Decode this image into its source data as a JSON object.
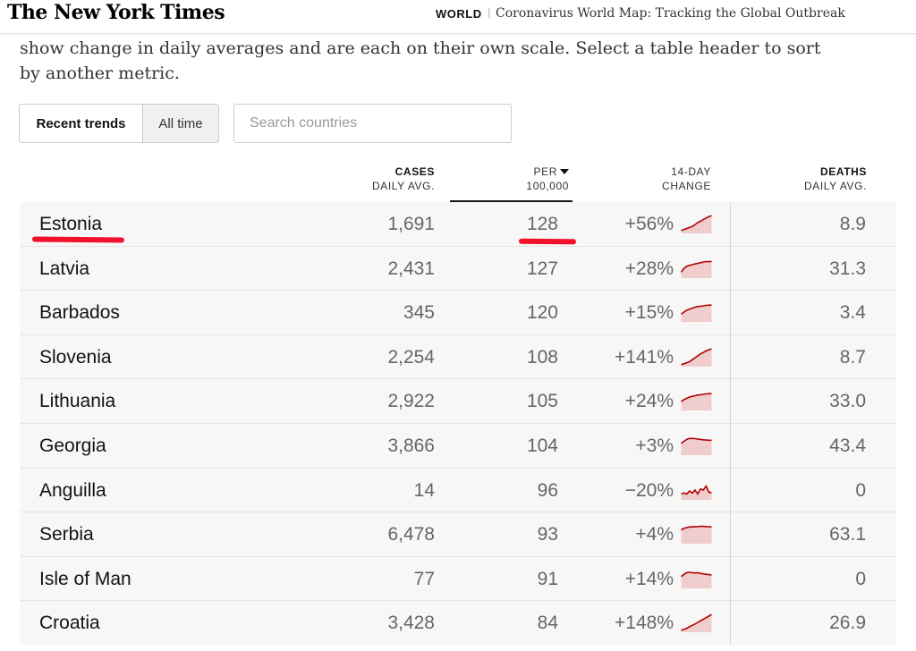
{
  "header": {
    "logo": "The New York Times",
    "section": "WORLD",
    "separator": "|",
    "headline": "Coronavirus World Map: Tracking the Global Outbreak"
  },
  "intro": {
    "text": "show change in daily averages and are each on their own scale. Select a table header to sort by another metric."
  },
  "controls": {
    "toggle": [
      "Recent trends",
      "All time"
    ],
    "active_toggle": "Recent trends",
    "search_placeholder": "Search countries"
  },
  "columns": {
    "cases": {
      "line1": "CASES",
      "line2": "DAILY AVG."
    },
    "per": {
      "line1": "PER",
      "line2": "100,000",
      "sort_icon": "sort-down-icon"
    },
    "change": {
      "line1": "14-DAY",
      "line2": "CHANGE"
    },
    "deaths": {
      "line1": "DEATHS",
      "line2": "DAILY AVG."
    }
  },
  "colors": {
    "spark_line": "#b30000",
    "spark_fill": "#f0cdcd",
    "annotation": "#f2102a"
  },
  "rows": [
    {
      "country": "Estonia",
      "cases": "1,691",
      "per100k": "128",
      "change": "+56%",
      "deaths": "8.9",
      "trend": [
        0.15,
        0.2,
        0.25,
        0.3,
        0.35,
        0.45,
        0.55,
        0.62,
        0.7,
        0.78,
        0.85,
        0.9
      ]
    },
    {
      "country": "Latvia",
      "cases": "2,431",
      "per100k": "127",
      "change": "+28%",
      "deaths": "31.3",
      "trend": [
        0.3,
        0.5,
        0.6,
        0.65,
        0.68,
        0.72,
        0.75,
        0.78,
        0.82,
        0.84,
        0.83,
        0.85
      ]
    },
    {
      "country": "Barbados",
      "cases": "345",
      "per100k": "120",
      "change": "+15%",
      "deaths": "3.4",
      "trend": [
        0.4,
        0.5,
        0.6,
        0.65,
        0.7,
        0.75,
        0.78,
        0.8,
        0.82,
        0.84,
        0.85,
        0.86
      ]
    },
    {
      "country": "Slovenia",
      "cases": "2,254",
      "per100k": "108",
      "change": "+141%",
      "deaths": "8.7",
      "trend": [
        0.1,
        0.15,
        0.2,
        0.25,
        0.35,
        0.45,
        0.55,
        0.65,
        0.72,
        0.8,
        0.86,
        0.9
      ]
    },
    {
      "country": "Lithuania",
      "cases": "2,922",
      "per100k": "105",
      "change": "+24%",
      "deaths": "33.0",
      "trend": [
        0.45,
        0.55,
        0.62,
        0.68,
        0.72,
        0.75,
        0.78,
        0.8,
        0.82,
        0.84,
        0.85,
        0.86
      ]
    },
    {
      "country": "Georgia",
      "cases": "3,866",
      "per100k": "104",
      "change": "+3%",
      "deaths": "43.4",
      "trend": [
        0.6,
        0.7,
        0.8,
        0.85,
        0.85,
        0.84,
        0.82,
        0.8,
        0.78,
        0.77,
        0.76,
        0.76
      ]
    },
    {
      "country": "Anguilla",
      "cases": "14",
      "per100k": "96",
      "change": "−20%",
      "deaths": "0",
      "trend": [
        0.3,
        0.35,
        0.3,
        0.45,
        0.35,
        0.5,
        0.3,
        0.55,
        0.5,
        0.7,
        0.4,
        0.35
      ]
    },
    {
      "country": "Serbia",
      "cases": "6,478",
      "per100k": "93",
      "change": "+4%",
      "deaths": "63.1",
      "trend": [
        0.7,
        0.78,
        0.82,
        0.85,
        0.86,
        0.86,
        0.87,
        0.88,
        0.88,
        0.87,
        0.86,
        0.85
      ]
    },
    {
      "country": "Isle of Man",
      "cases": "77",
      "per100k": "91",
      "change": "+14%",
      "deaths": "0",
      "trend": [
        0.6,
        0.72,
        0.8,
        0.82,
        0.8,
        0.78,
        0.8,
        0.76,
        0.74,
        0.72,
        0.7,
        0.68
      ]
    },
    {
      "country": "Croatia",
      "cases": "3,428",
      "per100k": "84",
      "change": "+148%",
      "deaths": "26.9",
      "trend": [
        0.1,
        0.15,
        0.2,
        0.28,
        0.35,
        0.42,
        0.5,
        0.58,
        0.66,
        0.74,
        0.82,
        0.9
      ]
    }
  ]
}
